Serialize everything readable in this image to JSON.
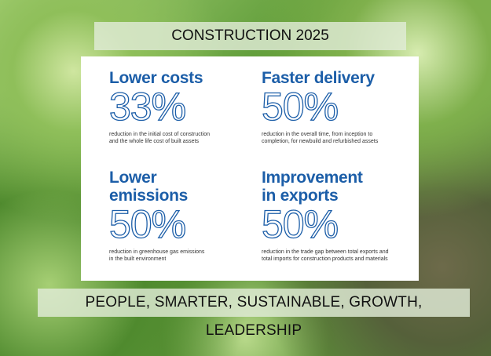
{
  "title": "CONSTRUCTION 2025",
  "footer": "PEOPLE, SMARTER, SUSTAINABLE, GROWTH, LEADERSHIP",
  "targets": [
    {
      "heading": "Lower costs",
      "value": "33%",
      "desc_1": "reduction in the initial cost of construction",
      "desc_2": "and the whole life cost of built assets"
    },
    {
      "heading": "Faster delivery",
      "value": "50%",
      "desc_1": "reduction in the overall time, from inception to",
      "desc_2": "completion, for newbuild and refurbished assets"
    },
    {
      "heading_1": "Lower",
      "heading_2": "emissions",
      "value": "50%",
      "desc_1": "reduction in greenhouse gas emissions",
      "desc_2": "in the built environment"
    },
    {
      "heading_1": "Improvement",
      "heading_2": "in exports",
      "value": "50%",
      "desc_1": "reduction in the trade gap between total exports and",
      "desc_2": "total imports for construction products and materials"
    }
  ],
  "colors": {
    "accent": "#1c5ea8",
    "banner": "#e1ebd7"
  }
}
